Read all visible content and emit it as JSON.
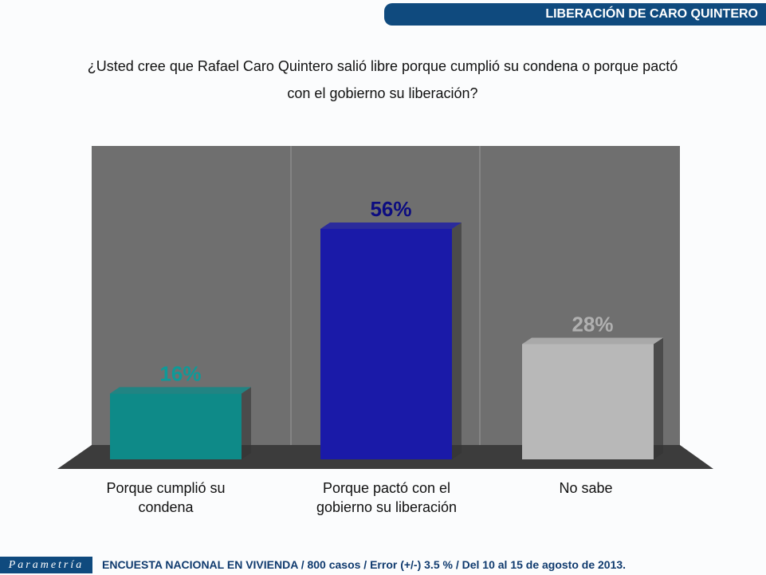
{
  "header": {
    "title": "LIBERACIÓN DE CARO QUINTERO"
  },
  "chart_data": {
    "type": "bar",
    "title": "¿Usted cree que Rafael Caro Quintero salió libre porque cumplió su condena o porque pactó con el gobierno su liberación?",
    "categories": [
      "Porque cumplió su condena",
      "Porque pactó con el gobierno su liberación",
      "No sabe"
    ],
    "values": [
      16,
      56,
      28
    ],
    "labels": [
      "16%",
      "56%",
      "28%"
    ],
    "colors": [
      "#0e8a88",
      "#1a1aa8",
      "#b8b8b8"
    ],
    "label_colors": [
      "#0e9a98",
      "#0c0c80",
      "#b0b0b0"
    ],
    "ylim": [
      0,
      75
    ]
  },
  "footer": {
    "logo": "Parametría",
    "text": "ENCUESTA NACIONAL EN VIVIENDA / 800 casos / Error (+/-) 3.5 % / Del 10 al 15 de agosto de 2013."
  }
}
